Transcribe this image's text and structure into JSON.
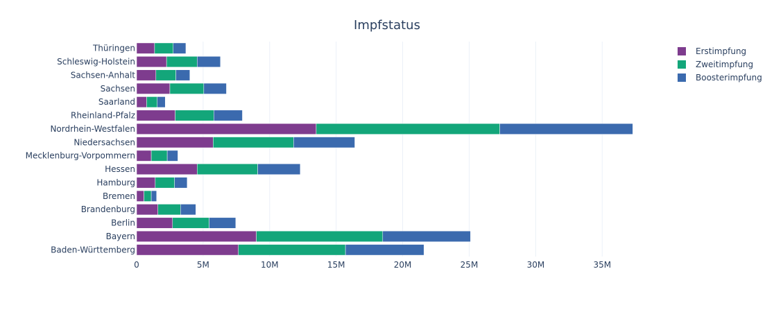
{
  "chart_data": {
    "type": "bar",
    "orientation": "horizontal",
    "barmode": "stack",
    "title": "Impfstatus",
    "xlabel": "",
    "ylabel": "",
    "xlim": [
      0,
      39000000
    ],
    "x_ticks": [
      {
        "value": 0,
        "label": "0"
      },
      {
        "value": 5000000,
        "label": "5M"
      },
      {
        "value": 10000000,
        "label": "10M"
      },
      {
        "value": 15000000,
        "label": "15M"
      },
      {
        "value": 20000000,
        "label": "20M"
      },
      {
        "value": 25000000,
        "label": "25M"
      },
      {
        "value": 30000000,
        "label": "30M"
      },
      {
        "value": 35000000,
        "label": "35M"
      }
    ],
    "grid": true,
    "legend_position": "top-right",
    "categories": [
      "Baden-Württemberg",
      "Bayern",
      "Berlin",
      "Brandenburg",
      "Bremen",
      "Hamburg",
      "Hessen",
      "Mecklenburg-Vorpommern",
      "Niedersachsen",
      "Nordrhein-Westfalen",
      "Rheinland-Pfalz",
      "Saarland",
      "Sachsen",
      "Sachsen-Anhalt",
      "Schleswig-Holstein",
      "Thüringen"
    ],
    "series": [
      {
        "name": "Erstimpfung",
        "color": "#7e3c8e",
        "values": [
          7650000,
          9000000,
          2700000,
          1600000,
          550000,
          1400000,
          4550000,
          1100000,
          5750000,
          13500000,
          2900000,
          750000,
          2500000,
          1450000,
          2250000,
          1350000
        ]
      },
      {
        "name": "Zweitimpfung",
        "color": "#13a67a",
        "values": [
          8050000,
          9500000,
          2750000,
          1700000,
          550000,
          1450000,
          4550000,
          1200000,
          6050000,
          13800000,
          2900000,
          800000,
          2550000,
          1500000,
          2300000,
          1400000
        ]
      },
      {
        "name": "Boosterimpfung",
        "color": "#3b6aae",
        "values": [
          5900000,
          6600000,
          2000000,
          1150000,
          400000,
          950000,
          3200000,
          800000,
          4600000,
          10000000,
          2150000,
          600000,
          1700000,
          1050000,
          1750000,
          950000
        ]
      }
    ]
  }
}
